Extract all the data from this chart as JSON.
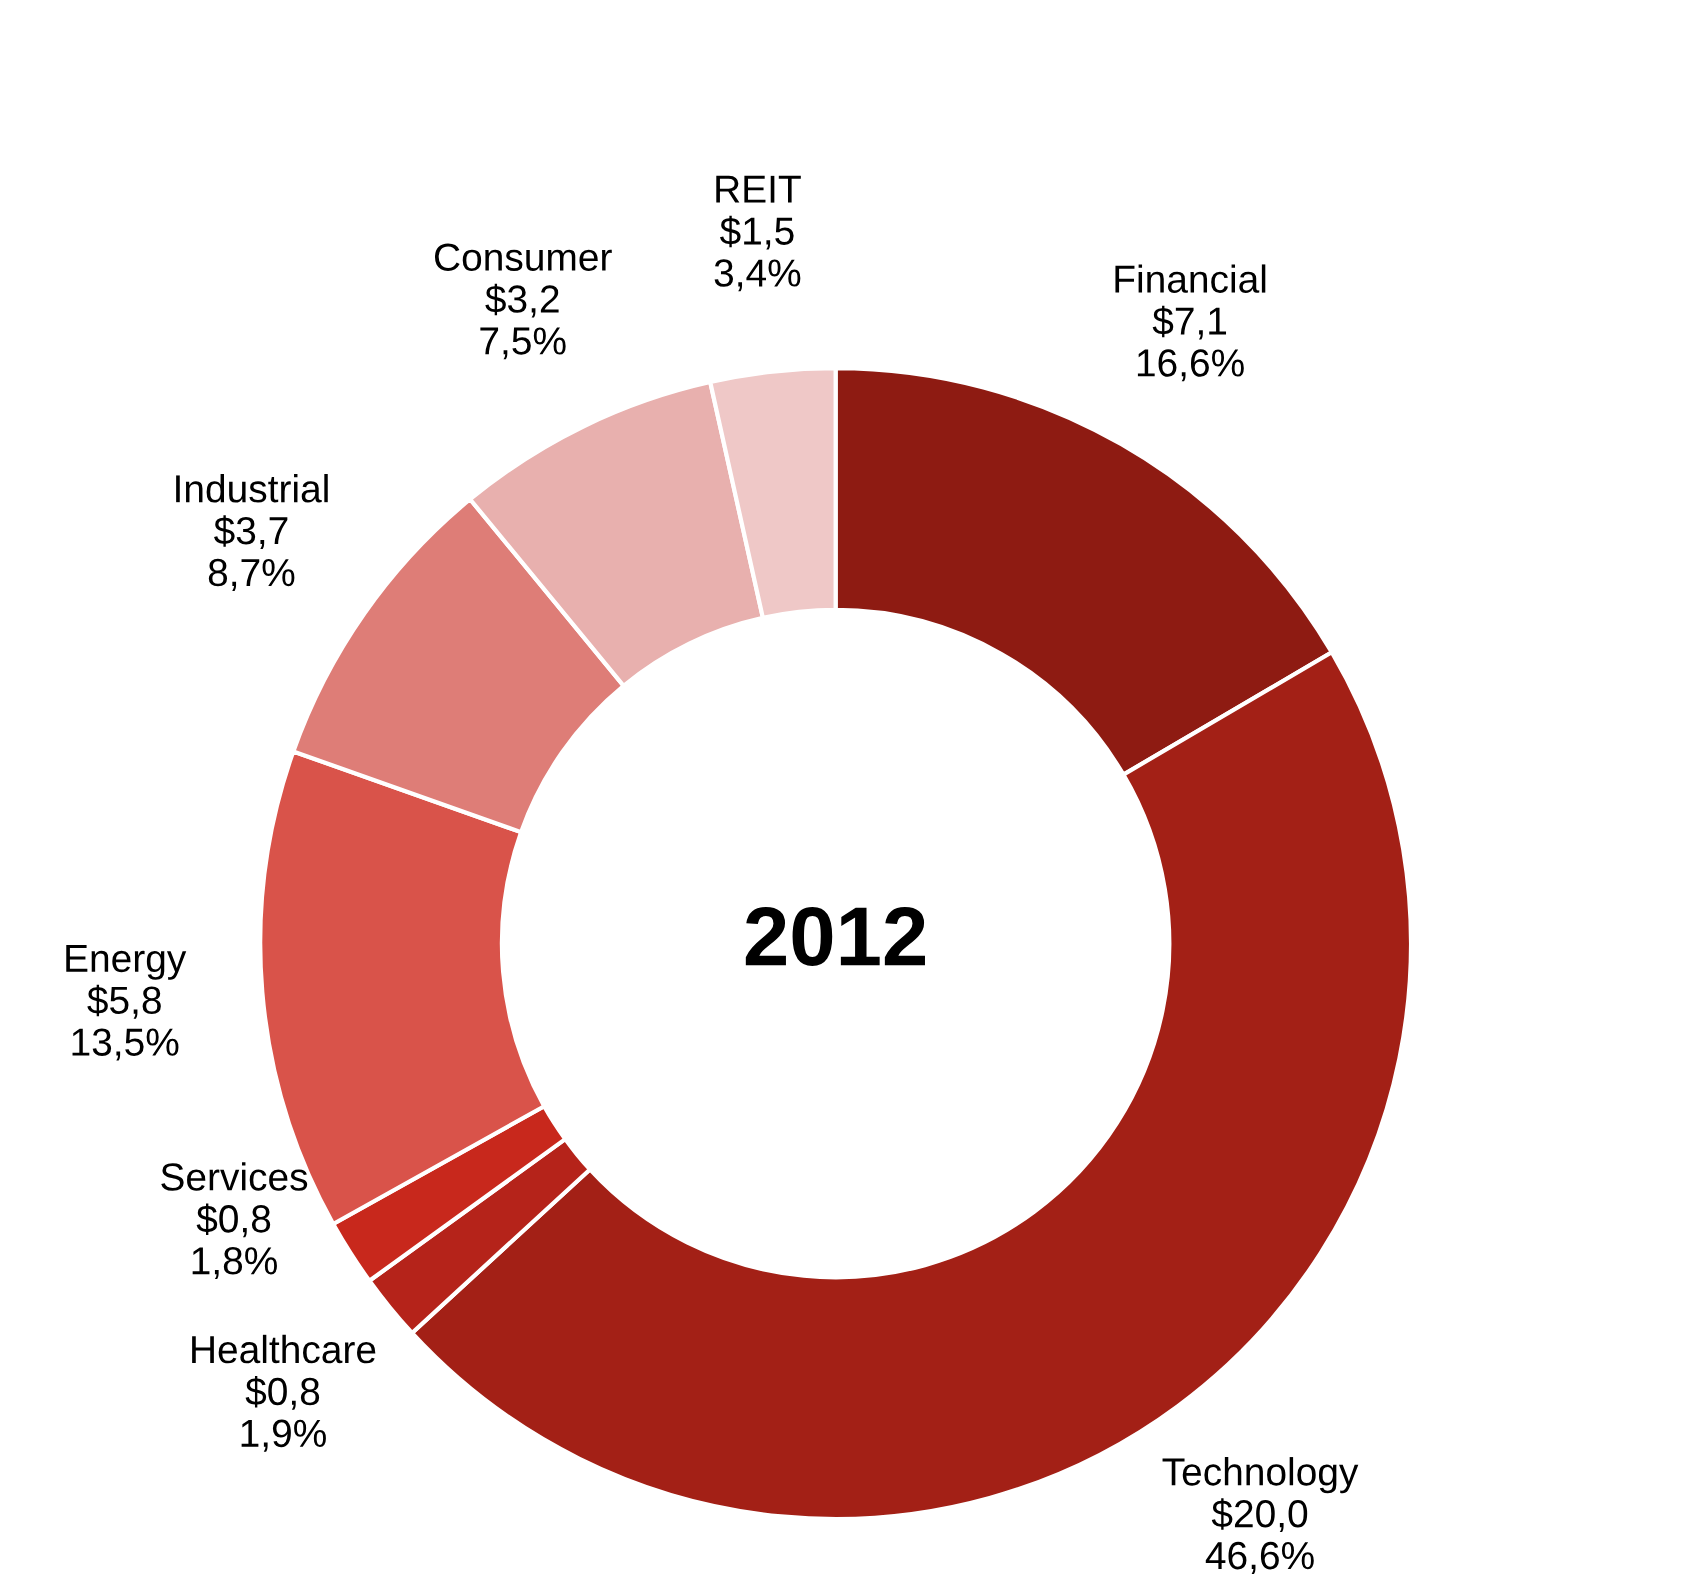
{
  "chart_data": {
    "type": "donut",
    "categories": [
      "Financial",
      "Technology",
      "Healthcare",
      "Services",
      "Energy",
      "Industrial",
      "Consumer",
      "REIT"
    ],
    "values": [
      7.1,
      20.0,
      0.8,
      0.8,
      5.8,
      3.7,
      3.2,
      1.5
    ],
    "value_labels": [
      "$7,1\n16,6%",
      "$20,0\n46,6%",
      "$0,8\n1,9%",
      "$0,8\n1,8%",
      "$5,8\n13,5%",
      "$3,7\n8,7%",
      "$3,2\n7,5%",
      "$1,5\n3,4%"
    ],
    "colors": [
      "#8e1b12",
      "#a32016",
      "#b5231a",
      "#c8281c",
      "#d9534a",
      "#de7d77",
      "#e8b0ae",
      "#efc8c7"
    ],
    "annotations": [
      "2012"
    ]
  }
}
